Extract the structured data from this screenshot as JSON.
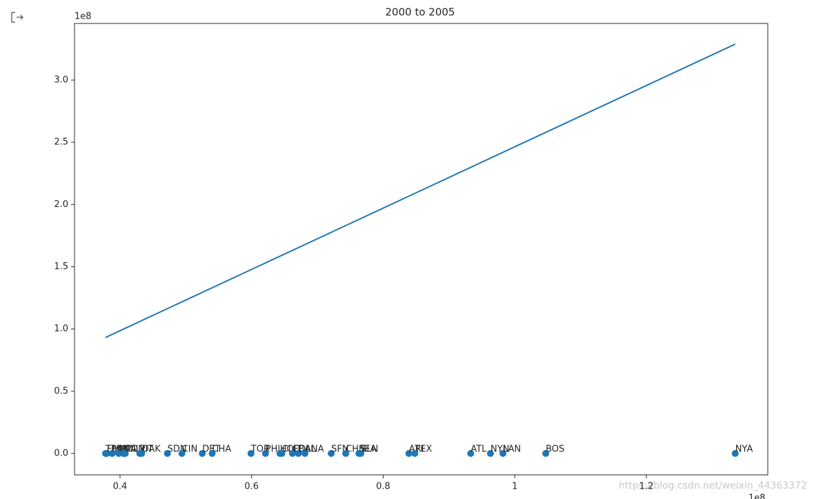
{
  "chart_data": {
    "type": "scatter",
    "title": "2000 to 2005",
    "x": [
      0.378,
      0.38,
      0.388,
      0.398,
      0.405,
      0.408,
      0.43,
      0.433,
      0.472,
      0.494,
      0.525,
      0.54,
      0.599,
      0.621,
      0.643,
      0.646,
      0.662,
      0.671,
      0.681,
      0.721,
      0.743,
      0.763,
      0.766,
      0.839,
      0.848,
      0.933,
      0.963,
      0.982,
      1.047,
      1.335
    ],
    "values": [
      0,
      0,
      0,
      0,
      0,
      0,
      0,
      0,
      0,
      0,
      0,
      0,
      0,
      0,
      0,
      0,
      0,
      0,
      0,
      0,
      0,
      0,
      0,
      0,
      0,
      0,
      0,
      0,
      0,
      0
    ],
    "point_labels": [
      "TBA",
      "FLO",
      "MIN",
      "KCA",
      "MON",
      "MIL",
      "PIT",
      "OAK",
      "SDN",
      "CIN",
      "DET",
      "CHA",
      "TOR",
      "PHI",
      "HOU",
      "CLE",
      "COL",
      "BAL",
      "ANA",
      "SFN",
      "CHN",
      "SEA",
      "SLN",
      "ARI",
      "TEX",
      "ATL",
      "NYN",
      "LAN",
      "BOS",
      "NYA"
    ],
    "color": "#1f77b4",
    "line": {
      "x": [
        0.378,
        1.335
      ],
      "values": [
        0.932,
        3.289
      ],
      "color": "#1f77b4"
    },
    "xlim": [
      0.3308,
      1.3845
    ],
    "ylim": [
      -0.172,
      3.455
    ],
    "xticks": [
      0.4,
      0.6,
      0.8,
      1.0,
      1.2
    ],
    "yticks": [
      {
        "value": 0,
        "label": "0.0"
      },
      {
        "value": 0.5,
        "label": "0.5"
      },
      {
        "value": 1,
        "label": "1.0"
      },
      {
        "value": 1.5,
        "label": "1.5"
      },
      {
        "value": 2,
        "label": "2.0"
      },
      {
        "value": 2.5,
        "label": "2.5"
      },
      {
        "value": 3,
        "label": "3.0"
      }
    ],
    "x_offset_label": "1e8",
    "y_offset_label": "1e8"
  },
  "watermark": "https://blog.csdn.net/weixin_44363372"
}
